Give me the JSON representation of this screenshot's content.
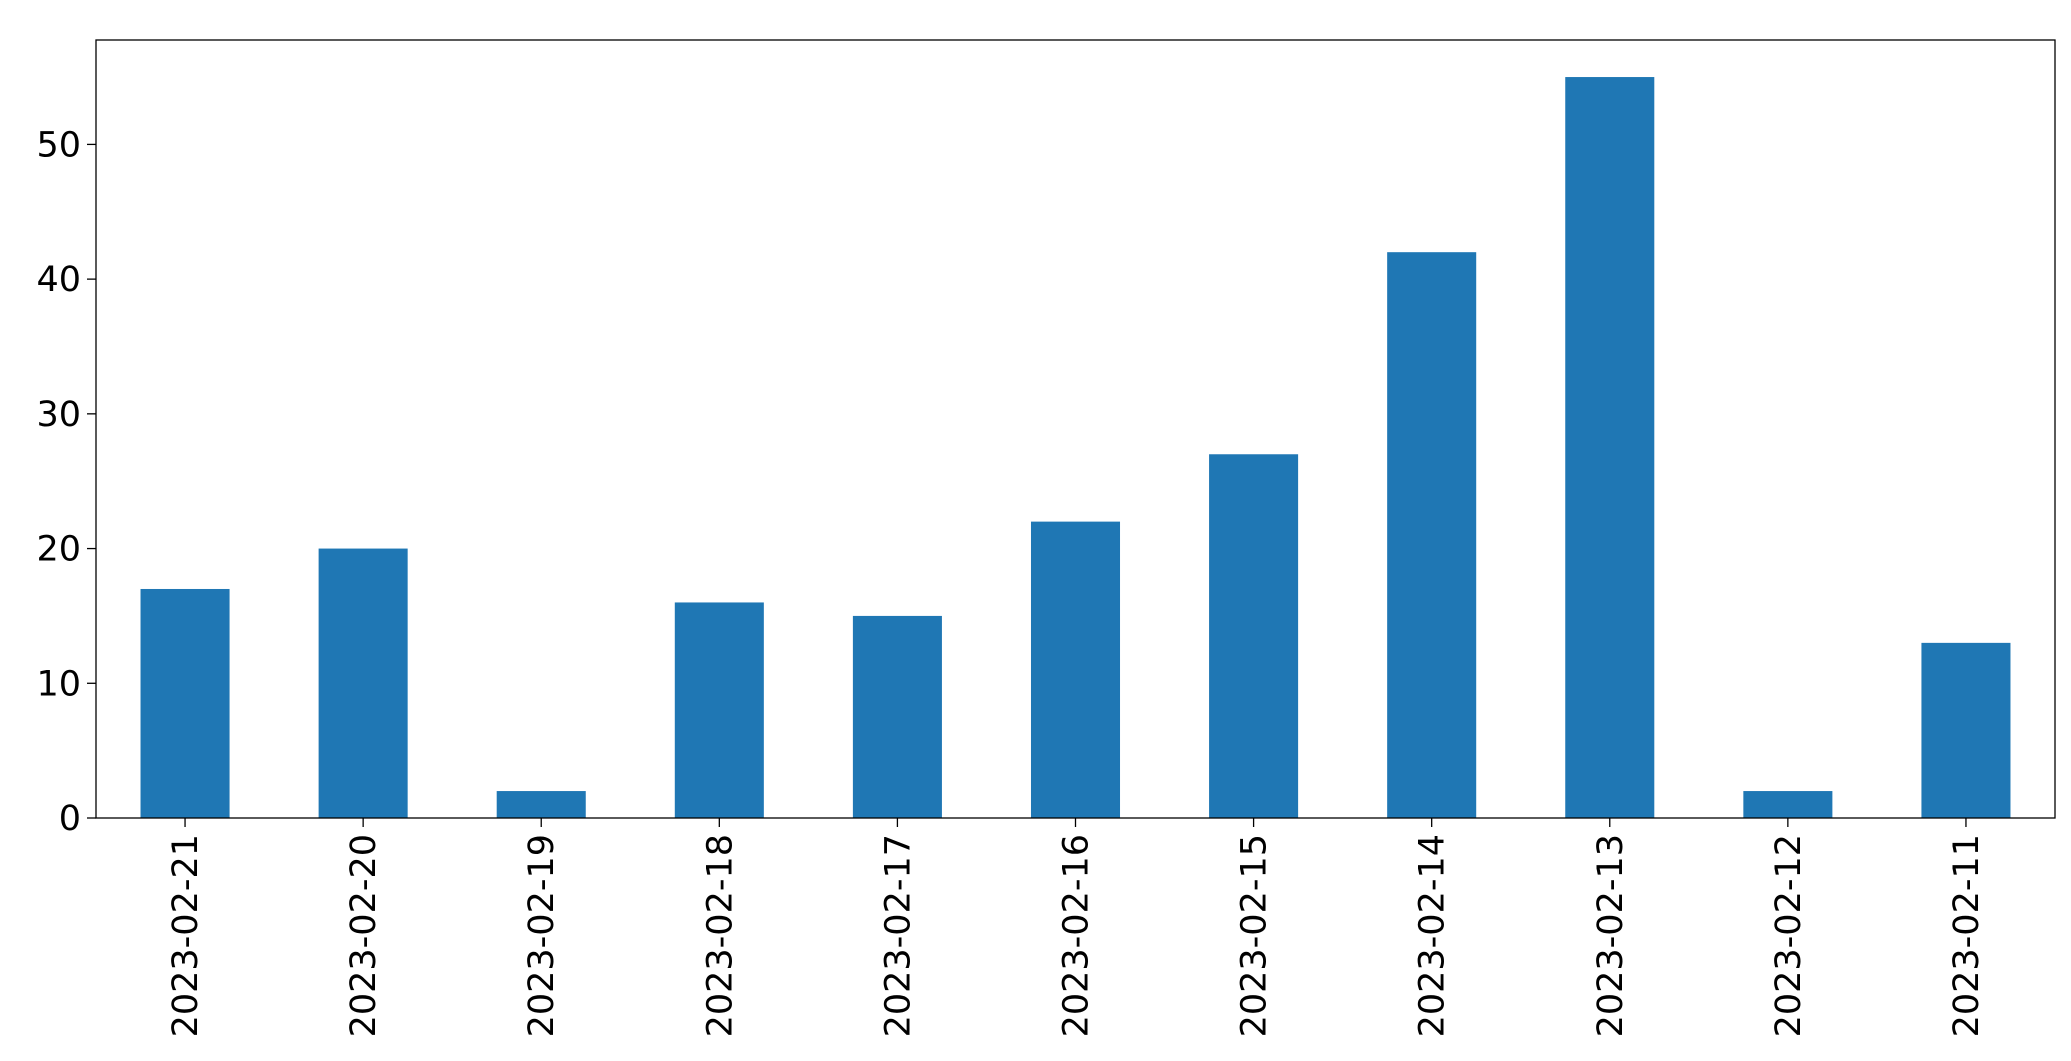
{
  "chart_data": {
    "type": "bar",
    "categories": [
      "2023-02-21",
      "2023-02-20",
      "2023-02-19",
      "2023-02-18",
      "2023-02-17",
      "2023-02-16",
      "2023-02-15",
      "2023-02-14",
      "2023-02-13",
      "2023-02-12",
      "2023-02-11"
    ],
    "values": [
      17,
      20,
      2,
      16,
      15,
      22,
      27,
      42,
      55,
      2,
      13
    ],
    "color": "#1f77b4",
    "ylim": [
      0,
      57.75
    ],
    "yticks": [
      0,
      10,
      20,
      30,
      40,
      50
    ],
    "grid": false
  }
}
